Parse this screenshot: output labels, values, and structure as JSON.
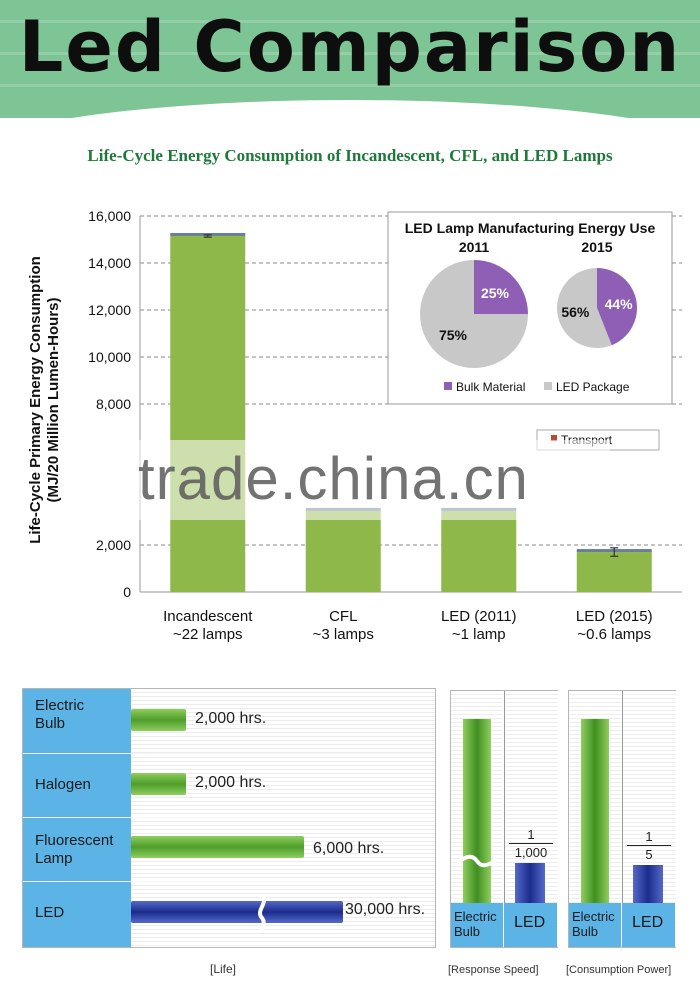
{
  "banner": {
    "title": "Led Comparison"
  },
  "subtitle": "Life-Cycle Energy Consumption of Incandescent, CFL, and LED Lamps",
  "watermark": "trade.china.cn",
  "colors": {
    "green": "#8fb84b",
    "purple": "#8e5fb4",
    "gray": "#c8c8c8",
    "blue_label": "#5cb4e6",
    "transport": "#b84a3a",
    "cap": "#6a7f95"
  },
  "chart_data": [
    {
      "type": "bar",
      "ylabel_line1": "Life-Cycle Primary Energy Consumption",
      "ylabel_line2": "(MJ/20 Million Lumen-Hours)",
      "yticks": [
        "16,000",
        "14,000",
        "12,000",
        "10,000",
        "8,000",
        "2,000",
        "0"
      ],
      "ylim": [
        0,
        16000
      ],
      "categories": [
        "Incandescent",
        "CFL",
        "LED (2011)",
        "LED (2015)"
      ],
      "category_notes": [
        "~22 lamps",
        "~3 lamps",
        "~1 lamp",
        "~0.6 lamps"
      ],
      "values": [
        15150,
        3450,
        3450,
        1700
      ],
      "errors": [
        50,
        0,
        0,
        180
      ],
      "legend_visible": [
        "Transport"
      ]
    },
    {
      "type": "pie",
      "title": "LED Lamp Manufacturing Energy Use",
      "pies": [
        {
          "year": "2011",
          "slices": [
            {
              "name": "Bulk Material",
              "value": 25,
              "label": "25%"
            },
            {
              "name": "LED Package",
              "value": 75,
              "label": "75%"
            }
          ]
        },
        {
          "year": "2015",
          "slices": [
            {
              "name": "Bulk Material",
              "value": 44,
              "label": "44%"
            },
            {
              "name": "LED Package",
              "value": 56,
              "label": "56%"
            }
          ]
        }
      ],
      "legend": [
        "Bulk Material",
        "LED Package"
      ]
    },
    {
      "type": "bar",
      "caption": "[Life]",
      "rows": [
        {
          "label_line1": "Electric",
          "label_line2": "Bulb",
          "value": 2000,
          "value_label": "2,000 hrs.",
          "color": "green"
        },
        {
          "label_line1": "Halogen",
          "label_line2": "",
          "value": 2000,
          "value_label": "2,000 hrs.",
          "color": "green"
        },
        {
          "label_line1": "Fluorescent",
          "label_line2": "Lamp",
          "value": 6000,
          "value_label": "6,000 hrs.",
          "color": "green"
        },
        {
          "label_line1": "LED",
          "label_line2": "",
          "value": 30000,
          "value_label": "30,000 hrs.",
          "color": "blue",
          "broken": true
        }
      ]
    },
    {
      "type": "bar",
      "caption": "[Response Speed]",
      "bars": [
        {
          "label_line1": "Electric",
          "label_line2": "Bulb",
          "value": 1,
          "color": "green",
          "broken": true
        },
        {
          "label_line1": "LED",
          "label_line2": "",
          "value_num": "1",
          "value_den": "1,000",
          "color": "blue"
        }
      ]
    },
    {
      "type": "bar",
      "caption": "[Consumption Power]",
      "bars": [
        {
          "label_line1": "Electric",
          "label_line2": "Bulb",
          "value": 1,
          "color": "green"
        },
        {
          "label_line1": "LED",
          "label_line2": "",
          "value_num": "1",
          "value_den": "5",
          "color": "blue"
        }
      ]
    }
  ]
}
